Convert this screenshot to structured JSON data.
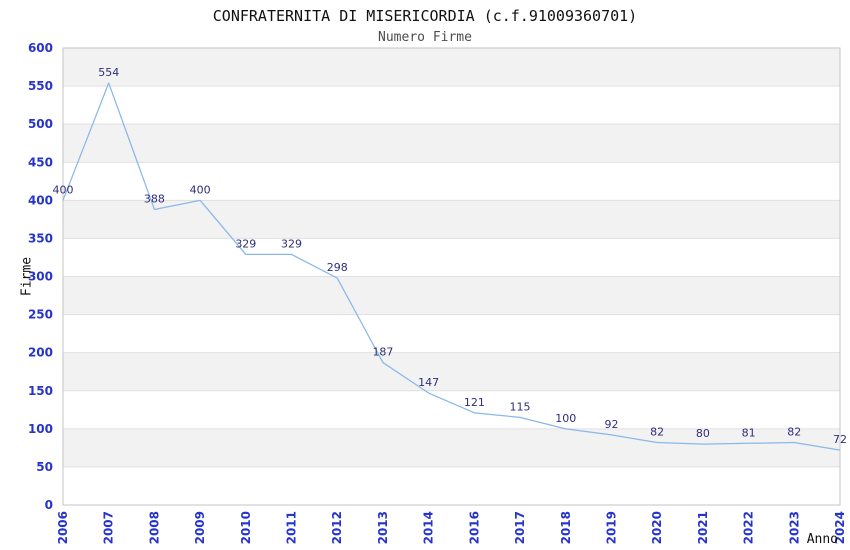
{
  "header": {
    "title": "CONFRATERNITA DI MISERICORDIA (c.f.91009360701)",
    "subtitle": "Numero Firme"
  },
  "chart_data": {
    "type": "line",
    "title": "CONFRATERNITA DI MISERICORDIA (c.f.91009360701)",
    "subtitle": "Numero Firme",
    "categories": [
      "2006",
      "2007",
      "2008",
      "2009",
      "2010",
      "2011",
      "2012",
      "2013",
      "2014",
      "2016",
      "2017",
      "2018",
      "2019",
      "2020",
      "2021",
      "2022",
      "2023",
      "2024"
    ],
    "values": [
      400,
      554,
      388,
      400,
      329,
      329,
      298,
      187,
      147,
      121,
      115,
      100,
      92,
      82,
      80,
      81,
      82,
      72
    ],
    "xlabel": "Anno",
    "ylabel": "Firme",
    "ylim": [
      0,
      600
    ],
    "ytick_step": 50,
    "grid": true,
    "legend_position": "none",
    "point_labels_visible": true,
    "band_pattern": "alternating horizontal bands of 50 units, shaded on odd bands (50-100, 150-200, ...)",
    "colors": {
      "line": "#89b8e9",
      "tick_label": "#2633cc",
      "data_label": "#2e2e7a",
      "band": "#f2f2f2",
      "grid_line": "#e0e0e0",
      "axis_line": "#c6c6c6",
      "title": "#111111",
      "subtitle": "#4d4d4d",
      "axis_name": "#111111",
      "background": "#ffffff"
    }
  }
}
